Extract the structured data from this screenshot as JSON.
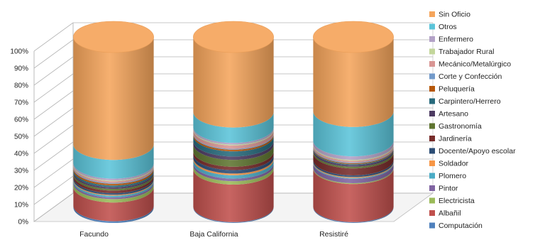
{
  "chart_data": {
    "type": "bar",
    "subtype": "stacked-100-3d-cylinder",
    "categories": [
      "Facundo",
      "Baja California",
      "Resistiré"
    ],
    "y_ticks": [
      "0%",
      "10%",
      "20%",
      "30%",
      "40%",
      "50%",
      "60%",
      "70%",
      "80%",
      "90%",
      "100%"
    ],
    "ylim": [
      0,
      100
    ],
    "grid": true,
    "legend_position": "right",
    "series": [
      {
        "name": "Computación",
        "color": "#4f81bd",
        "values": [
          1,
          0.5,
          0.5
        ]
      },
      {
        "name": "Albañil",
        "color": "#c0504d",
        "values": [
          11,
          22,
          22
        ]
      },
      {
        "name": "Electricista",
        "color": "#9bbb59",
        "values": [
          2,
          2,
          0.5
        ]
      },
      {
        "name": "Pintor",
        "color": "#8064a2",
        "values": [
          1,
          1.5,
          2.5
        ]
      },
      {
        "name": "Plomero",
        "color": "#4bacc6",
        "values": [
          1,
          2,
          0.5
        ]
      },
      {
        "name": "Soldador",
        "color": "#f79646",
        "values": [
          0.5,
          1,
          0.5
        ]
      },
      {
        "name": "Docente/Apoyo escolar",
        "color": "#2c4d75",
        "values": [
          1,
          2,
          1
        ]
      },
      {
        "name": "Jardinería",
        "color": "#772c2a",
        "values": [
          1.5,
          2,
          4
        ]
      },
      {
        "name": "Gastronomía",
        "color": "#5f7530",
        "values": [
          1,
          4,
          1
        ]
      },
      {
        "name": "Artesano",
        "color": "#4d3b62",
        "values": [
          1,
          2,
          1
        ]
      },
      {
        "name": "Carpintero/Herrero",
        "color": "#276a7c",
        "values": [
          1,
          3,
          0.5
        ]
      },
      {
        "name": "Peluquería",
        "color": "#b65708",
        "values": [
          1,
          1,
          0.5
        ]
      },
      {
        "name": "Corte y Confección",
        "color": "#729aca",
        "values": [
          0.5,
          0.5,
          0.5
        ]
      },
      {
        "name": "Mecánico/Metalúrgico",
        "color": "#d99694",
        "values": [
          1,
          2,
          1
        ]
      },
      {
        "name": "Trabajador Rural",
        "color": "#c3d69b",
        "values": [
          0.5,
          0.5,
          0.5
        ]
      },
      {
        "name": "Enfermero",
        "color": "#b3a2c7",
        "values": [
          1,
          1,
          2
        ]
      },
      {
        "name": "Otros",
        "color": "#5bc4d9",
        "values": [
          11,
          9,
          17
        ]
      },
      {
        "name": "Sin Oficio",
        "color": "#f5a55c",
        "values": [
          63,
          44,
          43
        ]
      }
    ]
  }
}
